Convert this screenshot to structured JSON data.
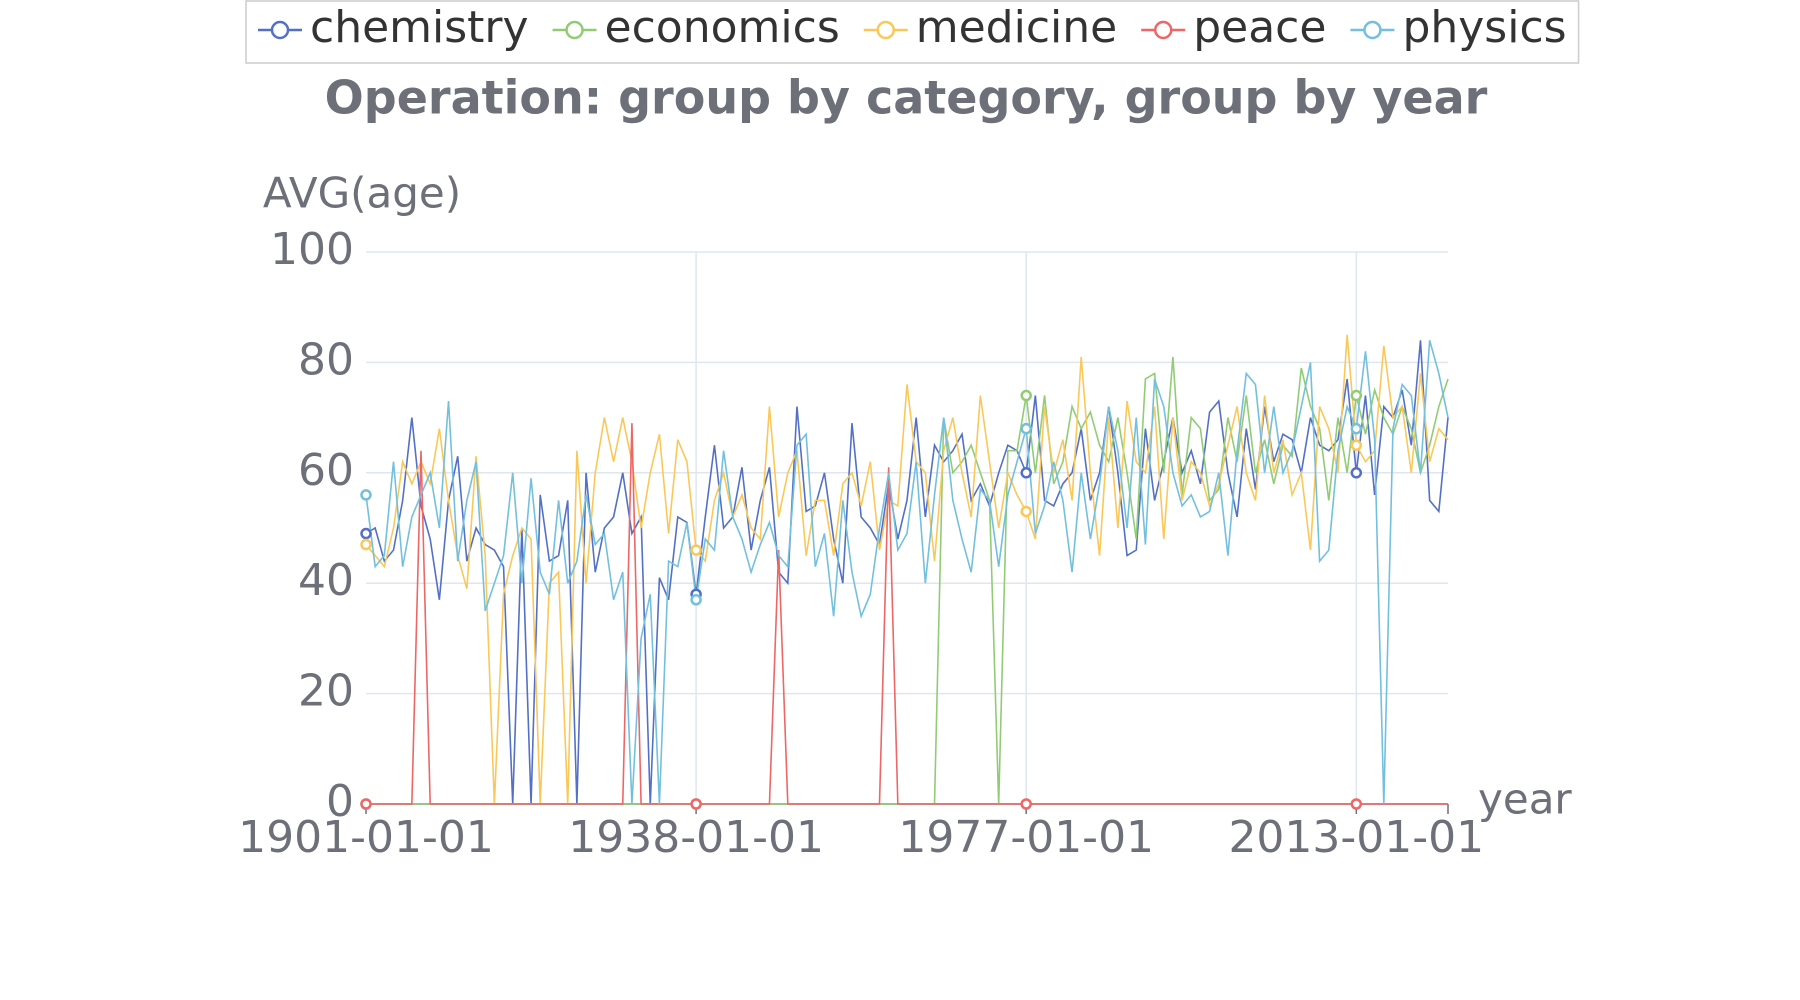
{
  "chart_data": {
    "type": "line",
    "title": "Operation: group by category, group by year",
    "y_label": "AVG(age)",
    "x_label": "year",
    "categories": [
      "1901-01-01",
      null,
      null,
      null,
      null,
      null,
      null,
      null,
      null,
      null,
      null,
      null,
      null,
      null,
      null,
      null,
      null,
      null,
      null,
      null,
      null,
      null,
      null,
      null,
      null,
      null,
      null,
      null,
      null,
      null,
      null,
      null,
      null,
      null,
      null,
      null,
      "1938-01-01",
      null,
      null,
      null,
      null,
      null,
      null,
      null,
      null,
      null,
      null,
      null,
      null,
      null,
      null,
      null,
      null,
      null,
      null,
      null,
      null,
      null,
      null,
      null,
      null,
      null,
      null,
      null,
      null,
      null,
      null,
      null,
      null,
      null,
      null,
      null,
      "1977-01-01",
      null,
      null,
      null,
      null,
      null,
      null,
      null,
      null,
      null,
      null,
      null,
      null,
      null,
      null,
      null,
      null,
      null,
      null,
      null,
      null,
      null,
      null,
      null,
      null,
      null,
      null,
      null,
      null,
      null,
      null,
      null,
      null,
      null,
      null,
      null,
      "2013-01-01",
      null,
      null,
      null,
      null,
      null,
      null,
      null,
      null,
      null,
      null
    ],
    "ylim": [
      0,
      100
    ],
    "yticks": [
      0,
      20,
      40,
      60,
      80,
      100
    ],
    "grid": true,
    "legend": "top",
    "series": [
      {
        "name": "chemistry",
        "color": "#5470c6",
        "values": [
          49,
          50,
          44,
          46,
          55,
          70,
          54,
          48,
          37,
          55,
          63,
          44,
          50,
          47,
          46,
          43,
          0,
          50,
          0,
          56,
          44,
          45,
          55,
          0,
          60,
          42,
          50,
          52,
          60,
          49,
          52,
          0,
          41,
          37,
          52,
          51,
          38,
          52,
          65,
          50,
          52,
          61,
          46,
          55,
          61,
          42,
          40,
          72,
          53,
          54,
          60,
          48,
          40,
          69,
          52,
          50,
          47,
          58,
          48,
          55,
          70,
          52,
          65,
          62,
          64,
          67,
          55,
          58,
          54,
          60,
          65,
          64,
          60,
          74,
          55,
          54,
          58,
          60,
          68,
          55,
          60,
          72,
          60,
          45,
          46,
          68,
          55,
          62,
          70,
          60,
          64,
          58,
          71,
          73,
          60,
          52,
          68,
          57,
          72,
          62,
          67,
          66,
          60,
          70,
          65,
          64,
          66,
          77,
          60,
          74,
          56,
          72,
          70,
          75,
          65,
          84,
          55,
          53,
          70
        ]
      },
      {
        "name": "economics",
        "color": "#91cc75",
        "values": [
          0,
          0,
          0,
          0,
          0,
          0,
          0,
          0,
          0,
          0,
          0,
          0,
          0,
          0,
          0,
          0,
          0,
          0,
          0,
          0,
          0,
          0,
          0,
          0,
          0,
          0,
          0,
          0,
          0,
          0,
          0,
          0,
          0,
          0,
          0,
          0,
          0,
          0,
          0,
          0,
          0,
          0,
          0,
          0,
          0,
          0,
          0,
          0,
          0,
          0,
          0,
          0,
          0,
          0,
          0,
          0,
          0,
          0,
          0,
          0,
          0,
          0,
          0,
          70,
          60,
          62,
          65,
          60,
          55,
          0,
          64,
          64,
          74,
          60,
          74,
          58,
          62,
          72,
          68,
          71,
          65,
          62,
          70,
          60,
          48,
          77,
          78,
          60,
          81,
          56,
          70,
          68,
          55,
          57,
          70,
          62,
          74,
          60,
          66,
          58,
          65,
          63,
          79,
          72,
          68,
          55,
          70,
          60,
          74,
          67,
          75,
          70,
          67,
          72,
          68,
          60,
          65,
          72,
          77
        ]
      },
      {
        "name": "medicine",
        "color": "#fac858",
        "values": [
          47,
          45,
          43,
          50,
          62,
          58,
          62,
          58,
          68,
          55,
          45,
          39,
          63,
          45,
          0,
          38,
          45,
          50,
          48,
          0,
          40,
          42,
          0,
          64,
          40,
          60,
          70,
          62,
          70,
          62,
          50,
          60,
          67,
          49,
          66,
          62,
          46,
          44,
          55,
          60,
          52,
          56,
          50,
          48,
          72,
          52,
          60,
          64,
          45,
          55,
          55,
          45,
          58,
          60,
          54,
          62,
          46,
          55,
          54,
          76,
          62,
          60,
          44,
          64,
          70,
          60,
          52,
          74,
          62,
          50,
          60,
          56,
          53,
          48,
          72,
          60,
          66,
          55,
          81,
          60,
          45,
          70,
          50,
          73,
          62,
          60,
          72,
          48,
          70,
          55,
          62,
          60,
          54,
          58,
          65,
          72,
          60,
          55,
          74,
          60,
          66,
          56,
          60,
          46,
          72,
          68,
          60,
          85,
          65,
          62,
          64,
          83,
          70,
          72,
          60,
          78,
          62,
          68,
          66
        ]
      },
      {
        "name": "peace",
        "color": "#ee6666",
        "values": [
          0,
          0,
          0,
          0,
          0,
          0,
          64,
          0,
          0,
          0,
          0,
          0,
          0,
          0,
          0,
          0,
          0,
          0,
          0,
          0,
          0,
          0,
          0,
          0,
          0,
          0,
          0,
          0,
          0,
          69,
          0,
          0,
          0,
          0,
          0,
          0,
          0,
          0,
          0,
          0,
          0,
          0,
          0,
          0,
          0,
          46,
          0,
          0,
          0,
          0,
          0,
          0,
          0,
          0,
          0,
          0,
          0,
          61,
          0,
          0,
          0,
          0,
          0,
          0,
          0,
          0,
          0,
          0,
          0,
          0,
          0,
          0,
          0,
          0,
          0,
          0,
          0,
          0,
          0,
          0,
          0,
          0,
          0,
          0,
          0,
          0,
          0,
          0,
          0,
          0,
          0,
          0,
          0,
          0,
          0,
          0,
          0,
          0,
          0,
          0,
          0,
          0,
          0,
          0,
          0,
          0,
          0,
          0,
          0,
          0,
          0,
          0,
          0,
          0,
          0,
          0,
          0,
          0,
          0
        ]
      },
      {
        "name": "physics",
        "color": "#73c0de",
        "values": [
          56,
          43,
          45,
          62,
          43,
          52,
          56,
          60,
          50,
          73,
          44,
          55,
          62,
          35,
          40,
          45,
          60,
          40,
          59,
          42,
          38,
          55,
          40,
          44,
          56,
          47,
          49,
          37,
          42,
          0,
          30,
          38,
          0,
          44,
          43,
          51,
          37,
          48,
          46,
          64,
          52,
          48,
          42,
          47,
          51,
          45,
          43,
          65,
          67,
          43,
          49,
          34,
          55,
          42,
          34,
          38,
          50,
          60,
          46,
          49,
          62,
          40,
          56,
          70,
          55,
          48,
          42,
          57,
          55,
          43,
          56,
          62,
          68,
          49,
          54,
          62,
          55,
          42,
          60,
          48,
          58,
          72,
          64,
          50,
          70,
          47,
          77,
          72,
          60,
          54,
          56,
          52,
          53,
          60,
          45,
          64,
          78,
          76,
          60,
          72,
          60,
          64,
          72,
          80,
          44,
          46,
          64,
          72,
          68,
          82,
          66,
          0,
          68,
          76,
          74,
          60,
          84,
          78,
          70
        ]
      }
    ]
  }
}
